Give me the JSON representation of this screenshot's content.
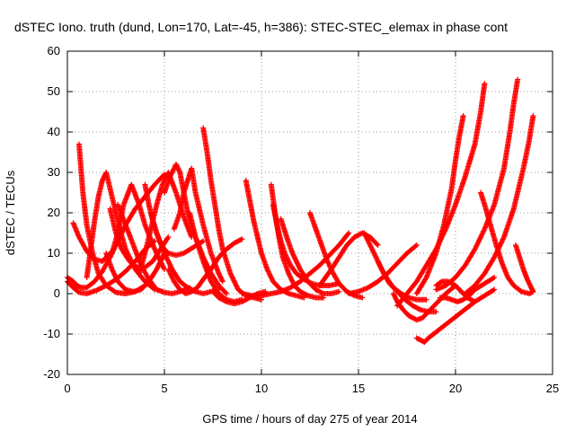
{
  "chart_data": {
    "type": "scatter",
    "title": "dSTEC Iono. truth (dund, Lon=170, Lat=-45, h=386): STEC-STEC_elemax in phase cont",
    "xlabel": "GPS time / hours of day 275 of year 2014",
    "ylabel": "dSTEC  / TECUs",
    "xlim": [
      0,
      25
    ],
    "ylim": [
      -20,
      60
    ],
    "xticks": [
      0,
      5,
      10,
      15,
      20,
      25
    ],
    "yticks": [
      -20,
      -10,
      0,
      10,
      20,
      30,
      40,
      50,
      60
    ],
    "xtick_labels": [
      "0",
      "5",
      "10",
      "15",
      "20",
      "25"
    ],
    "ytick_labels": [
      "-20",
      "-10",
      "0",
      "10",
      "20",
      "30",
      "40",
      "50",
      "60"
    ],
    "grid": true,
    "marker": "+",
    "color": "#ff0000",
    "series": [
      {
        "x": [
          0.0,
          0.3,
          0.6,
          1.0,
          1.5,
          2.0,
          2.5,
          3.0,
          3.5,
          4.0,
          4.5
        ],
        "y": [
          3.0,
          1.5,
          0.3,
          0.0,
          0.8,
          2.0,
          3.5,
          5.5,
          8.0,
          11.0,
          13.0
        ]
      },
      {
        "x": [
          0.0,
          0.3,
          0.5,
          0.7,
          1.0,
          1.4,
          1.8,
          2.2,
          2.6,
          3.0,
          3.5,
          4.0,
          4.5,
          5.0
        ],
        "y": [
          4.0,
          3.0,
          2.0,
          1.5,
          1.5,
          3.0,
          5.5,
          9.0,
          13.0,
          17.0,
          21.0,
          24.0,
          27.0,
          29.5
        ]
      },
      {
        "x": [
          0.6,
          0.8,
          1.0,
          1.3,
          1.6,
          2.0,
          2.5,
          3.0,
          3.5,
          4.0,
          4.3
        ],
        "y": [
          37.0,
          25.0,
          17.0,
          10.0,
          5.0,
          2.0,
          0.3,
          0.0,
          0.5,
          2.0,
          3.0
        ]
      },
      {
        "x": [
          0.3,
          0.6,
          1.0,
          1.4,
          1.8,
          2.0,
          2.2
        ],
        "y": [
          17.5,
          14.0,
          10.5,
          8.5,
          8.0,
          9.0,
          10.0
        ]
      },
      {
        "x": [
          1.0,
          1.2,
          1.4,
          1.6,
          1.8,
          2.0,
          2.3,
          2.7,
          3.0,
          3.5,
          4.0,
          4.5
        ],
        "y": [
          4.0,
          11.0,
          18.0,
          24.0,
          28.0,
          30.0,
          24.0,
          16.0,
          11.0,
          6.0,
          3.0,
          1.0
        ]
      },
      {
        "x": [
          2.0,
          2.3,
          2.6,
          3.0,
          3.4,
          3.8,
          4.2,
          4.6,
          5.0
        ],
        "y": [
          10.0,
          6.0,
          3.0,
          1.0,
          0.5,
          1.0,
          3.0,
          6.0,
          10.0
        ]
      },
      {
        "x": [
          2.2,
          2.5,
          2.8,
          3.2,
          3.6,
          4.0,
          4.4,
          4.8,
          5.2
        ],
        "y": [
          21.0,
          15.0,
          11.0,
          8.0,
          6.5,
          6.5,
          8.0,
          11.0,
          14.0
        ]
      },
      {
        "x": [
          2.3,
          2.6,
          2.9,
          3.3,
          3.7,
          4.0,
          4.5,
          5.0
        ],
        "y": [
          10.0,
          15.0,
          22.0,
          27.0,
          22.0,
          17.0,
          11.0,
          6.0
        ]
      },
      {
        "x": [
          2.6,
          3.0,
          3.4,
          3.8,
          4.2,
          4.6,
          5.0,
          5.4,
          5.8,
          6.3
        ],
        "y": [
          22.0,
          17.0,
          12.0,
          7.0,
          3.5,
          1.0,
          0.3,
          0.0,
          0.5,
          1.5
        ]
      },
      {
        "x": [
          4.0,
          4.2,
          4.4,
          4.6,
          4.8,
          5.0,
          5.2,
          5.6,
          6.0,
          6.5,
          7.0
        ],
        "y": [
          27.0,
          22.0,
          18.0,
          15.0,
          12.5,
          11.0,
          10.0,
          9.5,
          10.0,
          11.5,
          13.0
        ]
      },
      {
        "x": [
          3.7,
          4.0,
          4.3,
          4.6,
          4.9,
          5.2,
          5.6,
          6.0,
          6.4
        ],
        "y": [
          5.0,
          10.0,
          16.0,
          22.0,
          27.0,
          30.0,
          25.0,
          19.0,
          14.0
        ]
      },
      {
        "x": [
          4.3,
          4.6,
          5.0,
          5.4,
          5.8,
          6.2,
          6.6,
          7.0,
          7.4,
          7.8
        ],
        "y": [
          20.0,
          15.0,
          10.0,
          6.0,
          3.0,
          1.5,
          0.5,
          0.0,
          0.5,
          1.0
        ]
      },
      {
        "x": [
          5.0,
          5.3,
          5.6,
          5.8,
          6.0,
          6.2,
          6.6,
          7.0,
          7.4,
          7.8,
          8.2
        ],
        "y": [
          25.0,
          29.0,
          32.0,
          30.0,
          25.0,
          20.0,
          14.0,
          9.0,
          5.0,
          2.0,
          0.0
        ]
      },
      {
        "x": [
          5.5,
          5.8,
          6.0,
          6.2,
          6.4,
          6.6,
          7.0,
          7.4,
          7.8,
          8.0
        ],
        "y": [
          16.0,
          20.0,
          25.0,
          28.0,
          31.0,
          25.0,
          17.0,
          10.0,
          5.0,
          3.0
        ]
      },
      {
        "x": [
          5.2,
          5.5,
          5.8,
          6.1,
          6.4,
          6.7,
          7.0,
          7.4,
          7.8,
          8.2,
          8.6,
          9.0
        ],
        "y": [
          6.0,
          3.0,
          1.0,
          0.0,
          0.5,
          1.5,
          3.5,
          6.0,
          9.0,
          11.0,
          12.5,
          13.5
        ]
      },
      {
        "x": [
          7.0,
          7.2,
          7.4,
          7.6,
          7.8,
          8.0,
          8.4,
          8.8,
          9.2,
          9.6,
          10.0
        ],
        "y": [
          41.0,
          35.0,
          28.0,
          22.0,
          16.0,
          11.0,
          5.0,
          1.0,
          -0.5,
          -1.0,
          -1.5
        ]
      },
      {
        "x": [
          6.3,
          6.6,
          7.0,
          7.4,
          7.8,
          8.2,
          8.6,
          9.0
        ],
        "y": [
          20.0,
          14.0,
          8.0,
          3.0,
          0.0,
          -1.5,
          -2.0,
          -1.5
        ]
      },
      {
        "x": [
          7.5,
          7.8,
          8.2,
          8.6,
          9.0,
          9.4,
          9.8,
          10.2
        ],
        "y": [
          0.5,
          -1.0,
          -2.0,
          -2.5,
          -2.0,
          -1.0,
          0.0,
          0.5
        ]
      },
      {
        "x": [
          9.2,
          9.4,
          9.6,
          9.8,
          10.0,
          10.3,
          10.6,
          11.0,
          11.4,
          11.8,
          12.2
        ],
        "y": [
          28.0,
          23.0,
          18.0,
          14.0,
          10.0,
          6.0,
          3.0,
          1.0,
          0.0,
          -0.5,
          -1.0
        ]
      },
      {
        "x": [
          10.5,
          10.7,
          10.9,
          11.1,
          11.4,
          11.7,
          12.0,
          12.4,
          12.8,
          13.2
        ],
        "y": [
          27.0,
          20.0,
          14.0,
          9.0,
          5.0,
          2.0,
          0.5,
          -0.5,
          -1.0,
          -1.0
        ]
      },
      {
        "x": [
          10.6,
          10.8,
          11.0,
          11.2,
          11.5,
          11.8,
          12.2,
          12.6,
          13.0,
          13.5,
          14.0
        ],
        "y": [
          22.0,
          17.0,
          13.0,
          10.0,
          7.0,
          5.0,
          3.5,
          2.5,
          2.0,
          2.0,
          2.5
        ]
      },
      {
        "x": [
          11.0,
          11.3,
          11.6,
          12.0,
          12.4,
          12.8,
          13.2,
          13.6,
          14.0
        ],
        "y": [
          18.5,
          14.0,
          10.0,
          6.0,
          3.0,
          1.0,
          0.0,
          0.0,
          0.5
        ]
      },
      {
        "x": [
          9.0,
          9.5,
          10.0,
          10.5,
          11.0,
          11.5,
          12.0,
          12.5,
          13.0,
          13.5,
          14.0,
          14.5
        ],
        "y": [
          0.0,
          -0.5,
          -0.5,
          0.0,
          0.5,
          1.5,
          3.0,
          5.0,
          7.0,
          9.5,
          12.0,
          15.0
        ]
      },
      {
        "x": [
          12.5,
          12.8,
          13.1,
          13.4,
          13.7,
          14.0,
          14.4,
          14.8,
          15.2
        ],
        "y": [
          20.0,
          16.0,
          12.0,
          8.0,
          5.0,
          2.5,
          0.5,
          -0.5,
          -1.0
        ]
      },
      {
        "x": [
          13.0,
          13.3,
          13.6,
          14.0,
          14.4,
          14.8,
          15.2,
          15.6,
          16.0
        ],
        "y": [
          2.0,
          4.0,
          6.0,
          9.0,
          12.0,
          14.0,
          15.0,
          14.0,
          12.0
        ]
      },
      {
        "x": [
          15.3,
          15.6,
          15.9,
          16.2,
          16.5,
          16.8,
          17.2,
          17.6,
          18.0,
          18.5
        ],
        "y": [
          15.0,
          12.0,
          9.0,
          6.0,
          3.5,
          1.5,
          0.0,
          -1.0,
          -1.5,
          -1.5
        ]
      },
      {
        "x": [
          14.5,
          15.0,
          15.5,
          16.0,
          16.5,
          17.0,
          17.5,
          18.0
        ],
        "y": [
          0.0,
          0.5,
          1.5,
          3.0,
          5.0,
          7.5,
          10.0,
          12.0
        ]
      },
      {
        "x": [
          16.0,
          16.3,
          16.6,
          17.0,
          17.4,
          17.8,
          18.2,
          18.6,
          19.0
        ],
        "y": [
          8.0,
          5.0,
          2.5,
          0.5,
          -1.5,
          -3.0,
          -4.0,
          -4.5,
          -4.5
        ]
      },
      {
        "x": [
          16.8,
          17.0,
          17.3,
          17.6,
          18.0,
          18.3,
          18.6,
          19.0,
          19.5,
          20.0
        ],
        "y": [
          0.0,
          -2.0,
          -4.0,
          -5.5,
          -6.5,
          -6.0,
          -4.5,
          -2.5,
          0.0,
          2.0
        ]
      },
      {
        "x": [
          18.0,
          18.2,
          18.4,
          18.6,
          19.0,
          19.4,
          19.8,
          20.2,
          20.6,
          21.0,
          21.5,
          22.0
        ],
        "y": [
          -11.0,
          -11.5,
          -12.0,
          -11.0,
          -9.5,
          -8.0,
          -6.5,
          -5.0,
          -3.5,
          -2.0,
          -0.5,
          1.0
        ]
      },
      {
        "x": [
          18.0,
          18.5,
          19.0,
          19.4,
          19.8,
          20.0,
          20.2,
          20.4
        ],
        "y": [
          0.0,
          4.0,
          10.0,
          17.0,
          26.0,
          33.0,
          39.0,
          44.0
        ]
      },
      {
        "x": [
          17.0,
          17.5,
          18.0,
          18.5,
          19.0,
          19.5,
          20.0,
          20.5,
          21.0,
          21.3,
          21.5
        ],
        "y": [
          -3.0,
          0.0,
          3.0,
          7.0,
          11.0,
          16.0,
          22.0,
          29.0,
          37.0,
          45.0,
          52.0
        ]
      },
      {
        "x": [
          19.0,
          19.5,
          20.0,
          20.5,
          21.0,
          21.5,
          22.0,
          22.5,
          22.8,
          23.0,
          23.2
        ],
        "y": [
          1.0,
          2.0,
          4.0,
          7.0,
          11.0,
          16.0,
          22.0,
          31.0,
          40.0,
          47.0,
          53.0
        ]
      },
      {
        "x": [
          19.2,
          19.5,
          19.8,
          20.1,
          20.4,
          20.7,
          21.0,
          21.5,
          22.0
        ],
        "y": [
          -1.0,
          -1.0,
          -1.5,
          -2.0,
          -1.5,
          -0.5,
          1.0,
          2.5,
          4.0
        ]
      },
      {
        "x": [
          21.3,
          21.5,
          21.8,
          22.1,
          22.4,
          22.7,
          23.0,
          23.4,
          23.8,
          24.0
        ],
        "y": [
          25.0,
          22.0,
          17.0,
          12.0,
          7.5,
          4.0,
          2.0,
          0.5,
          0.0,
          0.5
        ]
      },
      {
        "x": [
          20.5,
          21.0,
          21.5,
          22.0,
          22.5,
          23.0,
          23.5,
          23.8,
          24.0
        ],
        "y": [
          0.0,
          2.0,
          5.0,
          9.0,
          14.0,
          21.0,
          31.0,
          38.0,
          44.0
        ]
      },
      {
        "x": [
          23.1,
          23.3,
          23.5,
          23.7,
          23.9,
          24.0
        ],
        "y": [
          12.0,
          9.0,
          6.0,
          3.5,
          1.5,
          0.5
        ]
      },
      {
        "x": [
          19.0,
          19.3,
          19.6,
          20.0,
          20.3,
          20.6,
          21.0
        ],
        "y": [
          2.0,
          3.0,
          3.0,
          2.0,
          0.5,
          -1.0,
          -2.0
        ]
      }
    ]
  }
}
